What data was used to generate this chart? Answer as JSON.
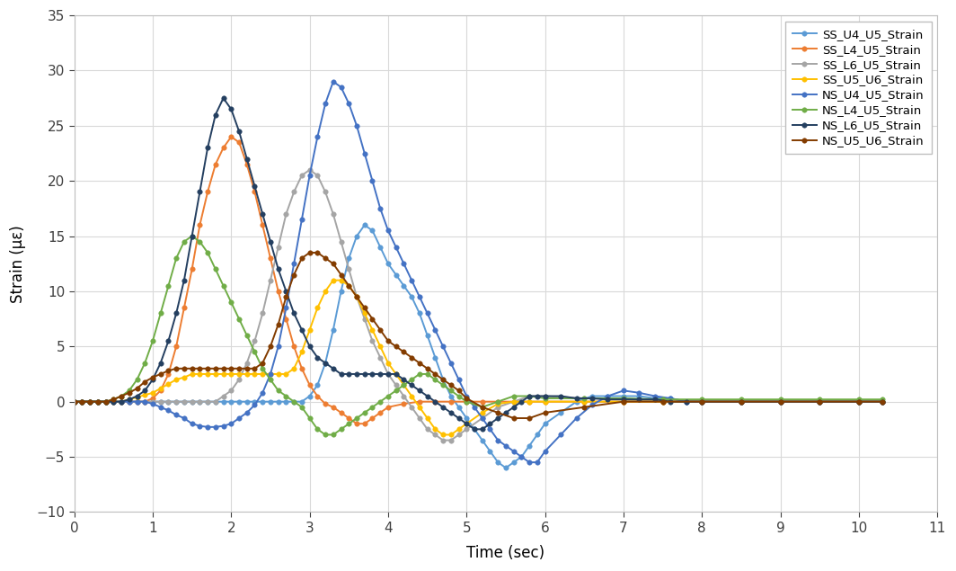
{
  "title": "",
  "xlabel": "Time (sec)",
  "ylabel": "Strain (με)",
  "xlim": [
    0,
    11
  ],
  "ylim": [
    -10,
    35
  ],
  "xticks": [
    0,
    1,
    2,
    3,
    4,
    5,
    6,
    7,
    8,
    9,
    10,
    11
  ],
  "yticks": [
    -10,
    -5,
    0,
    5,
    10,
    15,
    20,
    25,
    30,
    35
  ],
  "series": [
    {
      "label": "SS_U4_U5_Strain",
      "color": "#5B9BD5",
      "marker": "o",
      "markersize": 4,
      "linewidth": 1.4,
      "t": [
        0.0,
        0.1,
        0.2,
        0.3,
        0.4,
        0.5,
        0.6,
        0.7,
        0.8,
        0.9,
        1.0,
        1.1,
        1.2,
        1.3,
        1.4,
        1.5,
        1.6,
        1.7,
        1.8,
        1.9,
        2.0,
        2.1,
        2.2,
        2.3,
        2.4,
        2.5,
        2.6,
        2.7,
        2.8,
        2.9,
        3.0,
        3.1,
        3.2,
        3.3,
        3.4,
        3.5,
        3.6,
        3.7,
        3.8,
        3.9,
        4.0,
        4.1,
        4.2,
        4.3,
        4.4,
        4.5,
        4.6,
        4.7,
        4.8,
        4.9,
        5.0,
        5.1,
        5.2,
        5.3,
        5.4,
        5.5,
        5.6,
        5.7,
        5.8,
        5.9,
        6.0,
        6.2,
        6.4,
        6.6,
        6.8,
        7.0,
        7.2,
        7.4,
        7.6,
        7.8,
        8.0,
        8.5,
        9.0,
        9.5,
        10.0,
        10.3
      ],
      "y": [
        0.0,
        0.0,
        0.0,
        0.0,
        0.0,
        0.0,
        0.0,
        0.0,
        0.0,
        0.0,
        0.0,
        0.0,
        0.0,
        0.0,
        0.0,
        0.0,
        0.0,
        0.0,
        0.0,
        0.0,
        0.0,
        0.0,
        0.0,
        0.0,
        0.0,
        0.0,
        0.0,
        0.0,
        0.0,
        0.0,
        0.5,
        1.5,
        3.5,
        6.5,
        10.0,
        13.0,
        15.0,
        16.0,
        15.5,
        14.0,
        12.5,
        11.5,
        10.5,
        9.5,
        8.0,
        6.0,
        4.0,
        2.0,
        0.5,
        -0.5,
        -1.5,
        -2.5,
        -3.5,
        -4.5,
        -5.5,
        -6.0,
        -5.5,
        -5.0,
        -4.0,
        -3.0,
        -2.0,
        -1.0,
        0.0,
        0.5,
        0.5,
        0.5,
        0.5,
        0.3,
        0.3,
        0.0,
        0.0,
        0.0,
        0.0,
        0.0,
        0.0,
        0.0
      ]
    },
    {
      "label": "SS_L4_U5_Strain",
      "color": "#ED7D31",
      "marker": "o",
      "markersize": 4,
      "linewidth": 1.4,
      "t": [
        0.0,
        0.1,
        0.2,
        0.3,
        0.4,
        0.5,
        0.6,
        0.7,
        0.8,
        0.9,
        1.0,
        1.1,
        1.2,
        1.3,
        1.4,
        1.5,
        1.6,
        1.7,
        1.8,
        1.9,
        2.0,
        2.1,
        2.2,
        2.3,
        2.4,
        2.5,
        2.6,
        2.7,
        2.8,
        2.9,
        3.0,
        3.1,
        3.2,
        3.3,
        3.4,
        3.5,
        3.6,
        3.7,
        3.8,
        3.9,
        4.0,
        4.2,
        4.4,
        4.6,
        4.8,
        5.0,
        5.2,
        5.4,
        5.6,
        5.8,
        6.0,
        6.5,
        7.0,
        7.5,
        8.0,
        8.5,
        9.0,
        9.5,
        10.0,
        10.3
      ],
      "y": [
        0.0,
        0.0,
        0.0,
        0.0,
        0.0,
        0.0,
        0.0,
        0.0,
        0.0,
        0.0,
        0.3,
        1.0,
        2.5,
        5.0,
        8.5,
        12.0,
        16.0,
        19.0,
        21.5,
        23.0,
        24.0,
        23.5,
        21.5,
        19.0,
        16.0,
        13.0,
        10.0,
        7.5,
        5.0,
        3.0,
        1.5,
        0.5,
        -0.2,
        -0.5,
        -1.0,
        -1.5,
        -2.0,
        -2.0,
        -1.5,
        -1.0,
        -0.5,
        -0.2,
        0.0,
        0.0,
        0.0,
        0.0,
        0.0,
        0.0,
        0.0,
        0.0,
        0.0,
        0.0,
        0.0,
        0.0,
        0.0,
        0.0,
        0.0,
        0.0,
        0.0,
        0.0
      ]
    },
    {
      "label": "SS_L6_U5_Strain",
      "color": "#A5A5A5",
      "marker": "o",
      "markersize": 4,
      "linewidth": 1.4,
      "t": [
        0.0,
        0.1,
        0.2,
        0.3,
        0.4,
        0.5,
        0.6,
        0.7,
        0.8,
        0.9,
        1.0,
        1.1,
        1.2,
        1.3,
        1.4,
        1.5,
        1.6,
        1.7,
        1.8,
        1.9,
        2.0,
        2.1,
        2.2,
        2.3,
        2.4,
        2.5,
        2.6,
        2.7,
        2.8,
        2.9,
        3.0,
        3.1,
        3.2,
        3.3,
        3.4,
        3.5,
        3.6,
        3.7,
        3.8,
        3.9,
        4.0,
        4.1,
        4.2,
        4.3,
        4.4,
        4.5,
        4.6,
        4.7,
        4.8,
        4.9,
        5.0,
        5.2,
        5.4,
        5.6,
        5.8,
        6.0,
        6.5,
        7.0,
        7.5,
        8.0,
        8.5,
        9.0,
        9.5,
        10.0,
        10.3
      ],
      "y": [
        0.0,
        0.0,
        0.0,
        0.0,
        0.0,
        0.0,
        0.0,
        0.0,
        0.0,
        0.0,
        0.0,
        0.0,
        0.0,
        0.0,
        0.0,
        0.0,
        0.0,
        0.0,
        0.0,
        0.5,
        1.0,
        2.0,
        3.5,
        5.5,
        8.0,
        11.0,
        14.0,
        17.0,
        19.0,
        20.5,
        21.0,
        20.5,
        19.0,
        17.0,
        14.5,
        12.0,
        9.5,
        7.5,
        5.5,
        4.0,
        2.5,
        1.5,
        0.5,
        -0.5,
        -1.5,
        -2.5,
        -3.0,
        -3.5,
        -3.5,
        -3.0,
        -2.5,
        -1.5,
        -0.5,
        0.0,
        0.5,
        0.5,
        0.3,
        0.2,
        0.0,
        0.0,
        0.0,
        0.0,
        0.0,
        0.0,
        0.0
      ]
    },
    {
      "label": "SS_U5_U6_Strain",
      "color": "#FFC000",
      "marker": "o",
      "markersize": 4,
      "linewidth": 1.4,
      "t": [
        0.0,
        0.1,
        0.2,
        0.3,
        0.4,
        0.5,
        0.6,
        0.7,
        0.8,
        0.9,
        1.0,
        1.1,
        1.2,
        1.3,
        1.4,
        1.5,
        1.6,
        1.7,
        1.8,
        1.9,
        2.0,
        2.1,
        2.2,
        2.3,
        2.4,
        2.5,
        2.6,
        2.7,
        2.8,
        2.9,
        3.0,
        3.1,
        3.2,
        3.3,
        3.4,
        3.5,
        3.6,
        3.7,
        3.8,
        3.9,
        4.0,
        4.1,
        4.2,
        4.3,
        4.4,
        4.5,
        4.6,
        4.7,
        4.8,
        4.9,
        5.0,
        5.2,
        5.4,
        5.6,
        5.8,
        6.0,
        6.5,
        7.0,
        7.5,
        8.0,
        8.5,
        9.0,
        9.5,
        10.0,
        10.3
      ],
      "y": [
        0.0,
        0.0,
        0.0,
        0.0,
        0.0,
        0.0,
        0.0,
        0.2,
        0.4,
        0.6,
        0.8,
        1.2,
        1.6,
        2.0,
        2.2,
        2.5,
        2.5,
        2.5,
        2.5,
        2.5,
        2.5,
        2.5,
        2.5,
        2.5,
        2.5,
        2.5,
        2.5,
        2.5,
        3.0,
        4.5,
        6.5,
        8.5,
        10.0,
        11.0,
        11.0,
        10.5,
        9.5,
        8.0,
        6.5,
        5.0,
        3.5,
        2.5,
        1.5,
        0.5,
        -0.5,
        -1.5,
        -2.5,
        -3.0,
        -3.0,
        -2.5,
        -2.0,
        -1.0,
        -0.2,
        0.0,
        0.0,
        0.0,
        0.0,
        0.0,
        0.0,
        0.0,
        0.0,
        0.0,
        0.0,
        0.0,
        0.0
      ]
    },
    {
      "label": "NS_U4_U5_Strain",
      "color": "#4472C4",
      "marker": "o",
      "markersize": 4,
      "linewidth": 1.4,
      "t": [
        0.0,
        0.1,
        0.2,
        0.3,
        0.4,
        0.5,
        0.6,
        0.7,
        0.8,
        0.9,
        1.0,
        1.1,
        1.2,
        1.3,
        1.4,
        1.5,
        1.6,
        1.7,
        1.8,
        1.9,
        2.0,
        2.1,
        2.2,
        2.3,
        2.4,
        2.5,
        2.6,
        2.7,
        2.8,
        2.9,
        3.0,
        3.1,
        3.2,
        3.3,
        3.4,
        3.5,
        3.6,
        3.7,
        3.8,
        3.9,
        4.0,
        4.1,
        4.2,
        4.3,
        4.4,
        4.5,
        4.6,
        4.7,
        4.8,
        4.9,
        5.0,
        5.1,
        5.2,
        5.3,
        5.4,
        5.5,
        5.6,
        5.7,
        5.8,
        5.9,
        6.0,
        6.2,
        6.4,
        6.6,
        6.8,
        7.0,
        7.2,
        7.4,
        7.6,
        7.8,
        8.0,
        8.5,
        9.0,
        9.5,
        10.0,
        10.3
      ],
      "y": [
        0.0,
        0.0,
        0.0,
        0.0,
        0.0,
        0.0,
        0.0,
        0.0,
        0.0,
        0.0,
        -0.2,
        -0.5,
        -0.8,
        -1.2,
        -1.5,
        -2.0,
        -2.2,
        -2.3,
        -2.3,
        -2.2,
        -2.0,
        -1.5,
        -1.0,
        -0.3,
        0.8,
        2.5,
        5.0,
        8.5,
        12.5,
        16.5,
        20.5,
        24.0,
        27.0,
        29.0,
        28.5,
        27.0,
        25.0,
        22.5,
        20.0,
        17.5,
        15.5,
        14.0,
        12.5,
        11.0,
        9.5,
        8.0,
        6.5,
        5.0,
        3.5,
        2.0,
        0.5,
        -0.5,
        -1.5,
        -2.5,
        -3.5,
        -4.0,
        -4.5,
        -5.0,
        -5.5,
        -5.5,
        -4.5,
        -3.0,
        -1.5,
        -0.3,
        0.5,
        1.0,
        0.8,
        0.5,
        0.3,
        0.0,
        0.0,
        0.0,
        0.0,
        0.0,
        0.0,
        0.0
      ]
    },
    {
      "label": "NS_L4_U5_Strain",
      "color": "#70AD47",
      "marker": "o",
      "markersize": 4,
      "linewidth": 1.4,
      "t": [
        0.0,
        0.1,
        0.2,
        0.3,
        0.4,
        0.5,
        0.6,
        0.7,
        0.8,
        0.9,
        1.0,
        1.1,
        1.2,
        1.3,
        1.4,
        1.5,
        1.6,
        1.7,
        1.8,
        1.9,
        2.0,
        2.1,
        2.2,
        2.3,
        2.4,
        2.5,
        2.6,
        2.7,
        2.8,
        2.9,
        3.0,
        3.1,
        3.2,
        3.3,
        3.4,
        3.5,
        3.6,
        3.7,
        3.8,
        3.9,
        4.0,
        4.1,
        4.2,
        4.3,
        4.4,
        4.5,
        4.6,
        4.7,
        4.8,
        4.9,
        5.0,
        5.2,
        5.4,
        5.6,
        5.8,
        6.0,
        6.5,
        7.0,
        7.5,
        8.0,
        8.5,
        9.0,
        9.5,
        10.0,
        10.3
      ],
      "y": [
        0.0,
        0.0,
        0.0,
        0.0,
        0.0,
        0.2,
        0.5,
        1.0,
        2.0,
        3.5,
        5.5,
        8.0,
        10.5,
        13.0,
        14.5,
        15.0,
        14.5,
        13.5,
        12.0,
        10.5,
        9.0,
        7.5,
        6.0,
        4.5,
        3.0,
        2.0,
        1.0,
        0.5,
        0.0,
        -0.5,
        -1.5,
        -2.5,
        -3.0,
        -3.0,
        -2.5,
        -2.0,
        -1.5,
        -1.0,
        -0.5,
        0.0,
        0.5,
        1.0,
        1.5,
        2.0,
        2.5,
        2.5,
        2.0,
        1.5,
        1.0,
        0.5,
        0.0,
        -0.5,
        0.0,
        0.5,
        0.5,
        0.3,
        0.3,
        0.3,
        0.2,
        0.2,
        0.2,
        0.2,
        0.2,
        0.2,
        0.2
      ]
    },
    {
      "label": "NS_L6_U5_Strain",
      "color": "#243F60",
      "marker": "o",
      "markersize": 4,
      "linewidth": 1.4,
      "t": [
        0.0,
        0.1,
        0.2,
        0.3,
        0.4,
        0.5,
        0.6,
        0.7,
        0.8,
        0.9,
        1.0,
        1.1,
        1.2,
        1.3,
        1.4,
        1.5,
        1.6,
        1.7,
        1.8,
        1.9,
        2.0,
        2.1,
        2.2,
        2.3,
        2.4,
        2.5,
        2.6,
        2.7,
        2.8,
        2.9,
        3.0,
        3.1,
        3.2,
        3.3,
        3.4,
        3.5,
        3.6,
        3.7,
        3.8,
        3.9,
        4.0,
        4.1,
        4.2,
        4.3,
        4.4,
        4.5,
        4.6,
        4.7,
        4.8,
        4.9,
        5.0,
        5.1,
        5.2,
        5.3,
        5.4,
        5.5,
        5.6,
        5.7,
        5.8,
        5.9,
        6.0,
        6.2,
        6.4,
        6.6,
        6.8,
        7.0,
        7.2,
        7.4,
        7.6,
        7.8,
        8.0,
        8.5,
        9.0,
        9.5,
        10.0,
        10.3
      ],
      "y": [
        0.0,
        0.0,
        0.0,
        0.0,
        0.0,
        0.0,
        0.0,
        0.2,
        0.5,
        1.0,
        2.0,
        3.5,
        5.5,
        8.0,
        11.0,
        15.0,
        19.0,
        23.0,
        26.0,
        27.5,
        26.5,
        24.5,
        22.0,
        19.5,
        17.0,
        14.5,
        12.0,
        10.0,
        8.0,
        6.5,
        5.0,
        4.0,
        3.5,
        3.0,
        2.5,
        2.5,
        2.5,
        2.5,
        2.5,
        2.5,
        2.5,
        2.5,
        2.0,
        1.5,
        1.0,
        0.5,
        0.0,
        -0.5,
        -1.0,
        -1.5,
        -2.0,
        -2.5,
        -2.5,
        -2.0,
        -1.5,
        -1.0,
        -0.5,
        0.0,
        0.5,
        0.5,
        0.5,
        0.5,
        0.3,
        0.3,
        0.2,
        0.2,
        0.2,
        0.2,
        0.0,
        0.0,
        0.0,
        0.0,
        0.0,
        0.0,
        0.0,
        0.0
      ]
    },
    {
      "label": "NS_U5_U6_Strain",
      "color": "#833C00",
      "marker": "o",
      "markersize": 4,
      "linewidth": 1.4,
      "t": [
        0.0,
        0.1,
        0.2,
        0.3,
        0.4,
        0.5,
        0.6,
        0.7,
        0.8,
        0.9,
        1.0,
        1.1,
        1.2,
        1.3,
        1.4,
        1.5,
        1.6,
        1.7,
        1.8,
        1.9,
        2.0,
        2.1,
        2.2,
        2.3,
        2.4,
        2.5,
        2.6,
        2.7,
        2.8,
        2.9,
        3.0,
        3.1,
        3.2,
        3.3,
        3.4,
        3.5,
        3.6,
        3.7,
        3.8,
        3.9,
        4.0,
        4.1,
        4.2,
        4.3,
        4.4,
        4.5,
        4.6,
        4.7,
        4.8,
        4.9,
        5.0,
        5.2,
        5.4,
        5.6,
        5.8,
        6.0,
        6.5,
        7.0,
        7.5,
        8.0,
        8.5,
        9.0,
        9.5,
        10.0,
        10.3
      ],
      "y": [
        0.0,
        0.0,
        0.0,
        0.0,
        0.0,
        0.2,
        0.5,
        0.8,
        1.2,
        1.8,
        2.2,
        2.5,
        2.8,
        3.0,
        3.0,
        3.0,
        3.0,
        3.0,
        3.0,
        3.0,
        3.0,
        3.0,
        3.0,
        3.0,
        3.5,
        5.0,
        7.0,
        9.5,
        11.5,
        13.0,
        13.5,
        13.5,
        13.0,
        12.5,
        11.5,
        10.5,
        9.5,
        8.5,
        7.5,
        6.5,
        5.5,
        5.0,
        4.5,
        4.0,
        3.5,
        3.0,
        2.5,
        2.0,
        1.5,
        1.0,
        0.3,
        -0.5,
        -1.0,
        -1.5,
        -1.5,
        -1.0,
        -0.5,
        0.0,
        0.0,
        0.0,
        0.0,
        0.0,
        0.0,
        0.0,
        0.0
      ]
    }
  ],
  "legend_loc": "upper right",
  "grid": true,
  "background_color": "#FFFFFF",
  "plot_bgcolor": "#F2F2F2"
}
